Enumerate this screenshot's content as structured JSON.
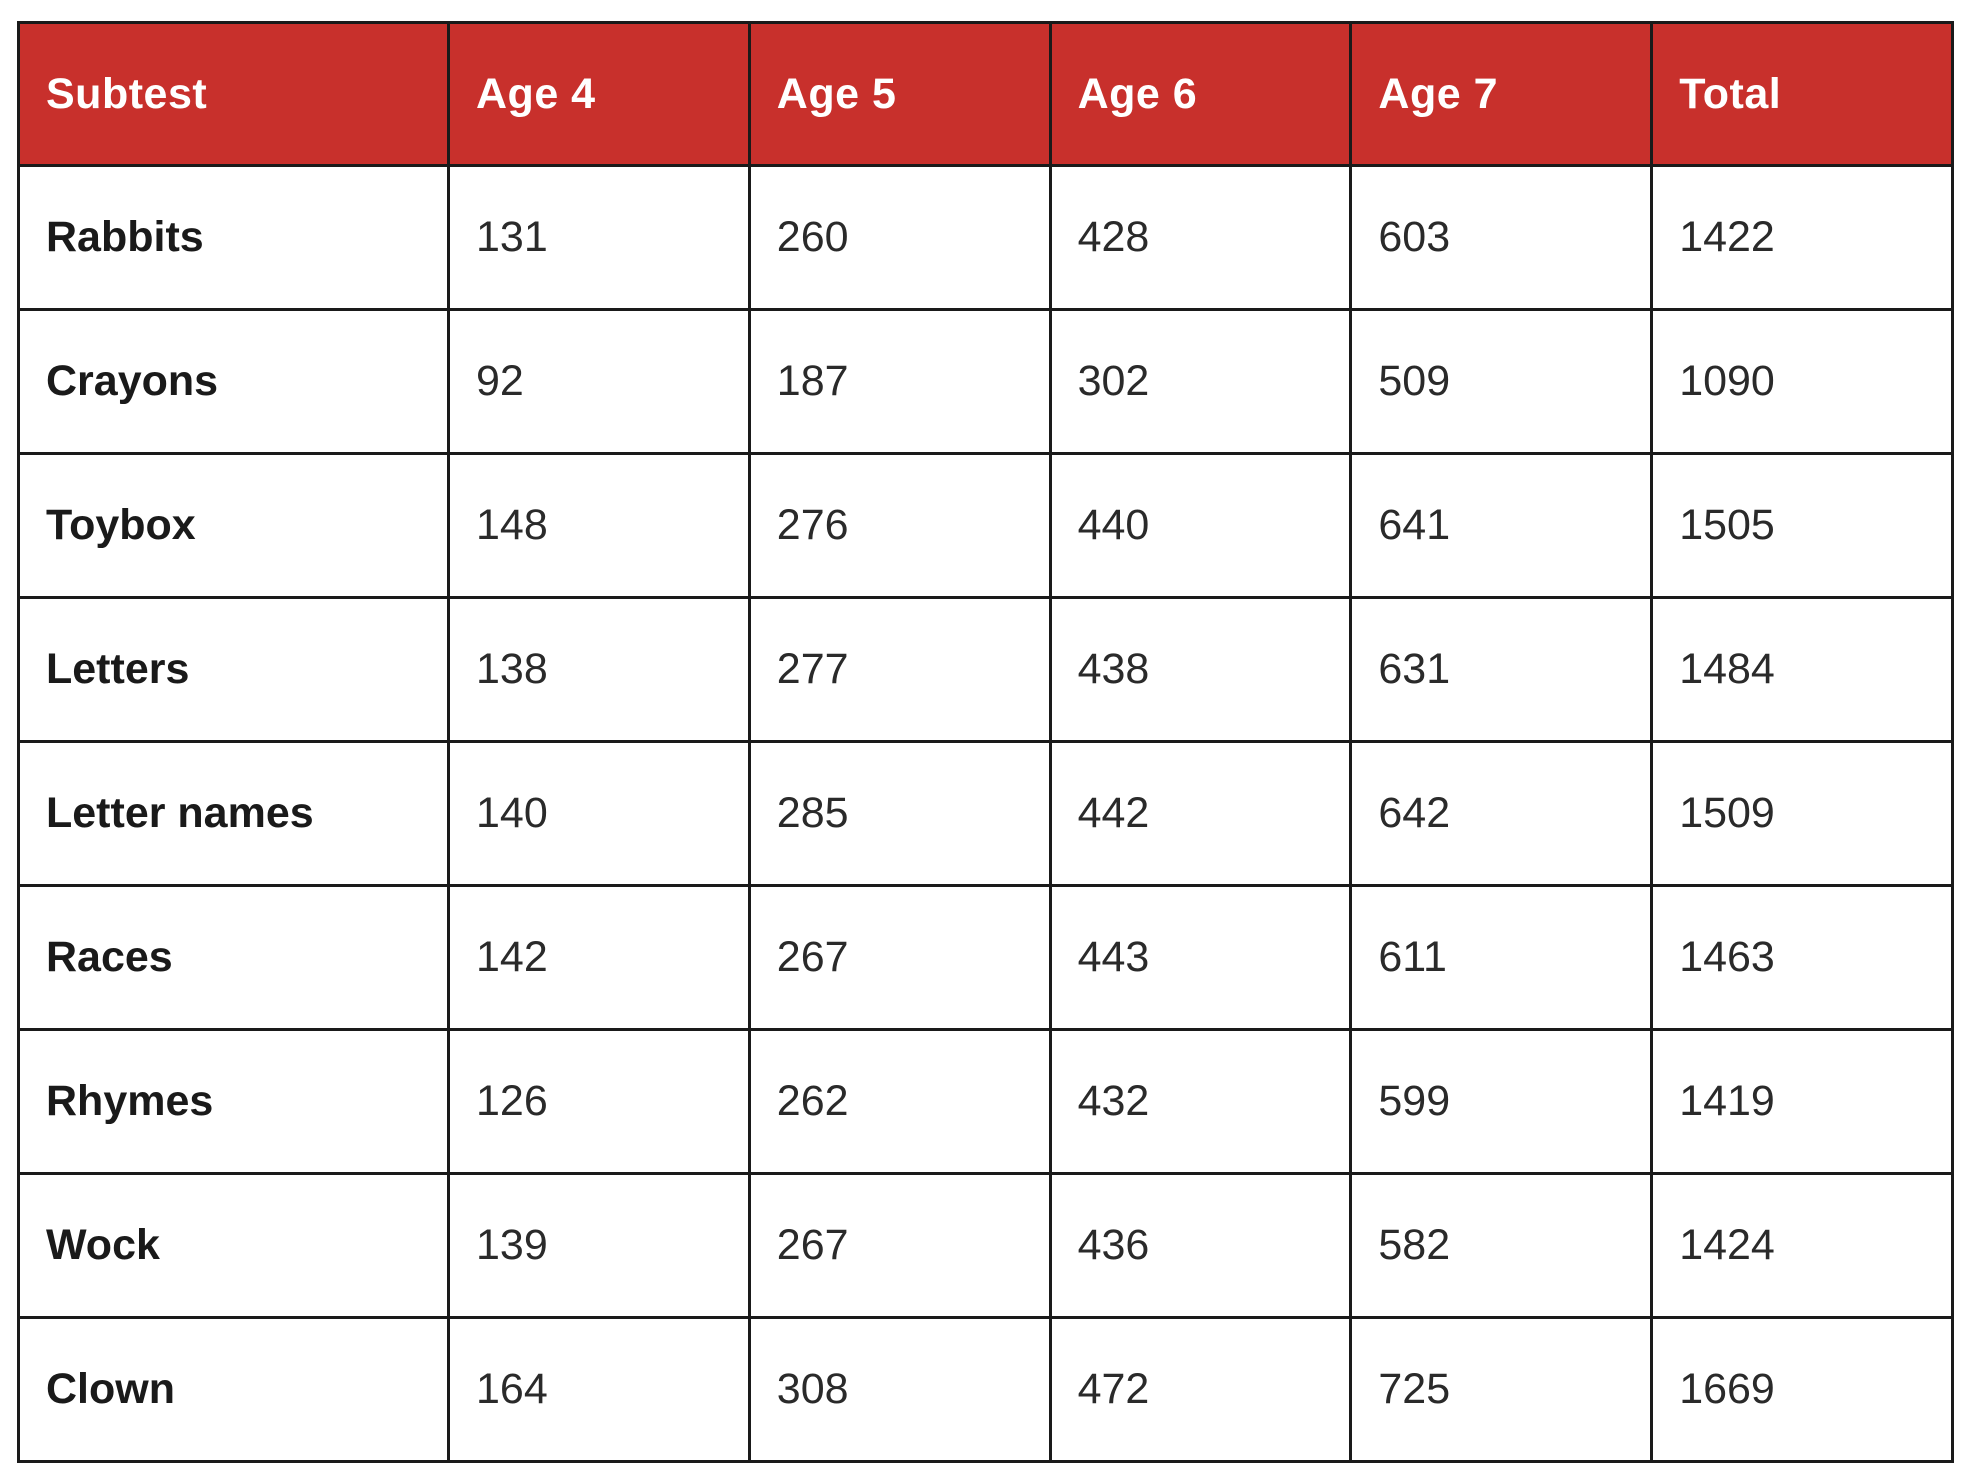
{
  "table": {
    "header_color": "#c8302c",
    "columns": [
      "Subtest",
      "Age 4",
      "Age 5",
      "Age 6",
      "Age 7",
      "Total"
    ],
    "rows": [
      {
        "subtest": "Rabbits",
        "values": [
          "131",
          "260",
          "428",
          "603",
          "1422"
        ]
      },
      {
        "subtest": "Crayons",
        "values": [
          "92",
          "187",
          "302",
          "509",
          "1090"
        ]
      },
      {
        "subtest": "Toybox",
        "values": [
          "148",
          "276",
          "440",
          "641",
          "1505"
        ]
      },
      {
        "subtest": "Letters",
        "values": [
          "138",
          "277",
          "438",
          "631",
          "1484"
        ]
      },
      {
        "subtest": "Letter names",
        "values": [
          "140",
          "285",
          "442",
          "642",
          "1509"
        ]
      },
      {
        "subtest": "Races",
        "values": [
          "142",
          "267",
          "443",
          "611",
          "1463"
        ]
      },
      {
        "subtest": "Rhymes",
        "values": [
          "126",
          "262",
          "432",
          "599",
          "1419"
        ]
      },
      {
        "subtest": "Wock",
        "values": [
          "139",
          "267",
          "436",
          "582",
          "1424"
        ]
      },
      {
        "subtest": "Clown",
        "values": [
          "164",
          "308",
          "472",
          "725",
          "1669"
        ]
      }
    ]
  }
}
